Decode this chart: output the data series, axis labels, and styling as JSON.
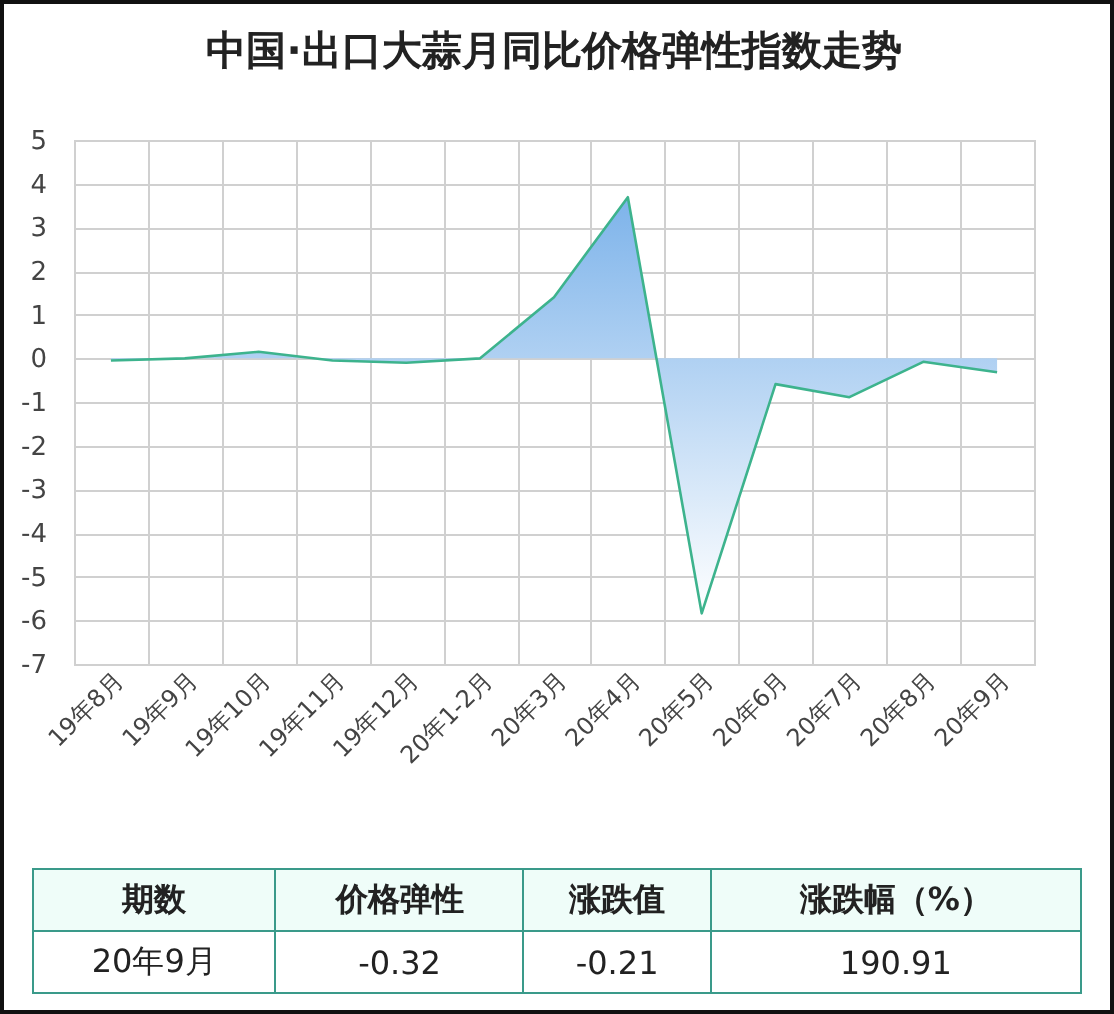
{
  "chart_data": {
    "type": "area",
    "title": "中国·出口大蒜月同比价格弹性指数走势",
    "categories": [
      "19年8月",
      "19年9月",
      "19年10月",
      "19年11月",
      "19年12月",
      "20年1-2月",
      "20年3月",
      "20年4月",
      "20年5月",
      "20年6月",
      "20年7月",
      "20年8月",
      "20年9月"
    ],
    "series": [
      {
        "color": "#3db38d",
        "values": [
          -0.05,
          0.0,
          0.15,
          -0.05,
          -0.1,
          0.0,
          1.4,
          3.69,
          -5.84,
          -0.59,
          -0.89,
          -0.08,
          -0.32
        ]
      }
    ],
    "ylim": [
      -7,
      5
    ],
    "yticks": [
      -7,
      -6,
      -5,
      -4,
      -3,
      -2,
      -1,
      0,
      1,
      2,
      3,
      4,
      5
    ],
    "grid": true,
    "marker": "none",
    "annotations": [
      "期数",
      "价格弹性",
      "涨跌值",
      "涨跌幅（%）",
      "20年9月",
      "-0.32",
      "-0.21",
      "190.91"
    ]
  }
}
